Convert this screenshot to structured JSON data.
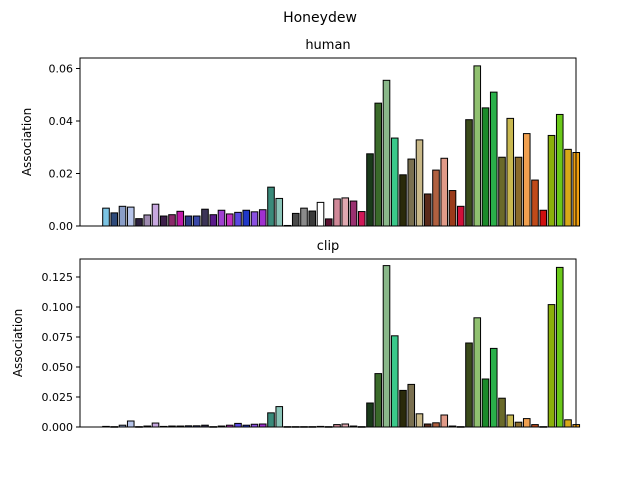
{
  "figure": {
    "suptitle": "Honeydew"
  },
  "chart_data": [
    {
      "type": "bar",
      "title": "human",
      "xlabel": "",
      "ylabel": "Association",
      "ylim": [
        0,
        0.064
      ],
      "yticks": [
        0.0,
        0.02,
        0.04,
        0.06
      ],
      "ytick_labels": [
        "0.00",
        "0.02",
        "0.04",
        "0.06"
      ],
      "grid": false,
      "values": [
        0.0068,
        0.005,
        0.0075,
        0.0072,
        0.0028,
        0.0042,
        0.0083,
        0.0038,
        0.0043,
        0.0056,
        0.0038,
        0.0038,
        0.0064,
        0.0043,
        0.006,
        0.0046,
        0.0052,
        0.006,
        0.0054,
        0.0062,
        0.0148,
        0.0105,
        0.0002,
        0.0048,
        0.0068,
        0.0057,
        0.009,
        0.0027,
        0.0103,
        0.0107,
        0.0095,
        0.0055,
        0.0275,
        0.0468,
        0.0555,
        0.0335,
        0.0195,
        0.0255,
        0.0328,
        0.0122,
        0.0213,
        0.0258,
        0.0135,
        0.0075,
        0.0405,
        0.061,
        0.045,
        0.051,
        0.0262,
        0.041,
        0.0262,
        0.0352,
        0.0175,
        0.006,
        0.0345,
        0.0425,
        0.0292,
        0.028
      ]
    },
    {
      "type": "bar",
      "title": "clip",
      "xlabel": "",
      "ylabel": "Association",
      "ylim": [
        0,
        0.14
      ],
      "yticks": [
        0.0,
        0.025,
        0.05,
        0.075,
        0.1,
        0.125
      ],
      "ytick_labels": [
        "0.000",
        "0.025",
        "0.050",
        "0.075",
        "0.100",
        "0.125"
      ],
      "grid": false,
      "values": [
        0.0005,
        0.0003,
        0.0015,
        0.005,
        0.0003,
        0.0008,
        0.0033,
        0.0005,
        0.0008,
        0.0008,
        0.001,
        0.001,
        0.0015,
        0.0003,
        0.0008,
        0.0015,
        0.003,
        0.0015,
        0.0023,
        0.0025,
        0.0118,
        0.017,
        0.0003,
        0.0003,
        0.0003,
        0.0003,
        0.0005,
        0.0003,
        0.002,
        0.0025,
        0.0008,
        0.0003,
        0.02,
        0.0445,
        0.1345,
        0.076,
        0.0305,
        0.0355,
        0.011,
        0.0025,
        0.0035,
        0.01,
        0.0008,
        0.0003,
        0.07,
        0.091,
        0.04,
        0.0655,
        0.024,
        0.01,
        0.004,
        0.007,
        0.002,
        0.0003,
        0.102,
        0.133,
        0.006,
        0.002
      ]
    }
  ],
  "colors": {
    "bars": [
      "#7cc4e3",
      "#2e4a7a",
      "#8a9ec8",
      "#b6c4ea",
      "#2c1f3e",
      "#9e8ab0",
      "#c8a8e0",
      "#3d1f4a",
      "#8a2a6a",
      "#c01aa8",
      "#2a3a8a",
      "#3a48a8",
      "#3c3458",
      "#5a1a8a",
      "#a040d0",
      "#c030c0",
      "#5a48e0",
      "#2038c8",
      "#8a50e0",
      "#a030d0",
      "#3a8a7a",
      "#8ac4b8",
      "#1a2a2a",
      "#4a4a4a",
      "#8a8a8a",
      "#3a3a3a",
      "#ffffff",
      "#5a1030",
      "#d08898",
      "#e0a8b0",
      "#9a3070",
      "#d01858",
      "#1a3a1a",
      "#3a6a2a",
      "#8ab88a",
      "#3ac88a",
      "#2a2a0a",
      "#7a7050",
      "#c8b888",
      "#5a2a1a",
      "#b06040",
      "#e09a88",
      "#9a3a1a",
      "#d0103a",
      "#3a4a1a",
      "#90c070",
      "#1a8a2a",
      "#2ab04a",
      "#6a6a2a",
      "#c8b850",
      "#8a6a2a",
      "#f0a050",
      "#c04a1a",
      "#d01010",
      "#8ab00a",
      "#6ac81a",
      "#d8a818",
      "#f0a010"
    ],
    "edge": "#000000"
  }
}
